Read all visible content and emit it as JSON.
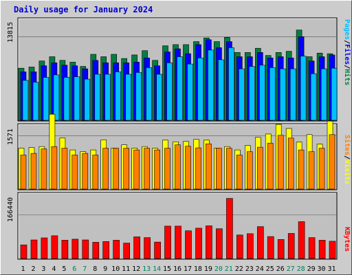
{
  "chart_data": {
    "type": "bar",
    "title": "Daily usage for January 2024",
    "x": [
      "1",
      "2",
      "3",
      "4",
      "5",
      "6",
      "7",
      "8",
      "9",
      "10",
      "11",
      "12",
      "13",
      "14",
      "15",
      "16",
      "17",
      "18",
      "19",
      "20",
      "21",
      "22",
      "23",
      "24",
      "25",
      "26",
      "27",
      "28",
      "29",
      "30",
      "31"
    ],
    "weekend_days": [
      "6",
      "7",
      "13",
      "14",
      "20",
      "21",
      "27",
      "28"
    ],
    "panels": [
      {
        "tick_label": "13815",
        "tick_value": 13815,
        "ymax": 16800,
        "legend_separator": "/",
        "series": [
          {
            "name": "Hits",
            "color": "#008040",
            "values": [
              8600,
              8800,
              9800,
              10500,
              9900,
              9600,
              8900,
              10900,
              10500,
              10900,
              10200,
              10800,
              11500,
              9900,
              12300,
              12500,
              12500,
              13000,
              13600,
              13000,
              13700,
              11200,
              11200,
              11900,
              10700,
              11200,
              11400,
              14900,
              10500,
              11100,
              11000
            ]
          },
          {
            "name": "Files",
            "color": "#0000ff",
            "values": [
              8000,
              8000,
              9000,
              9500,
              9100,
              9000,
              8500,
              9900,
              9500,
              9500,
              9500,
              9600,
              10300,
              9000,
              11300,
              11800,
              11000,
              12500,
              13300,
              12000,
              13000,
              10500,
              10500,
              11200,
              10300,
              10500,
              10300,
              13800,
              9800,
              10500,
              10800
            ]
          },
          {
            "name": "Pages",
            "color": "#00c0ff",
            "values": [
              6600,
              6300,
              7100,
              7500,
              7100,
              7200,
              6800,
              7600,
              7600,
              8000,
              7600,
              7900,
              8700,
              7600,
              9500,
              10500,
              9300,
              10300,
              11600,
              10000,
              12000,
              8500,
              8900,
              9100,
              8700,
              8500,
              8500,
              10600,
              7700,
              8500,
              8600
            ]
          }
        ]
      },
      {
        "tick_label": "1571",
        "tick_value": 1571,
        "ymax": 1900,
        "legend_separator": "/",
        "series": [
          {
            "name": "Visits",
            "color": "#ffff00",
            "values": [
              1200,
              1220,
              1250,
              2200,
              1500,
              1150,
              1100,
              1150,
              1450,
              1200,
              1300,
              1200,
              1250,
              1200,
              1440,
              1390,
              1400,
              1460,
              1440,
              1200,
              1250,
              1150,
              1280,
              1520,
              1620,
              1900,
              1780,
              1380,
              1600,
              1320,
              2000
            ]
          },
          {
            "name": "Sites",
            "color": "#ff8000",
            "values": [
              1000,
              1050,
              1180,
              1250,
              1200,
              1000,
              1050,
              1000,
              1200,
              1200,
              1200,
              1150,
              1200,
              1150,
              1200,
              1300,
              1260,
              1210,
              1330,
              1200,
              1200,
              1000,
              1100,
              1230,
              1350,
              1580,
              1500,
              1150,
              1100,
              1200,
              1600
            ]
          }
        ]
      },
      {
        "tick_label": "166440",
        "tick_value": 166440,
        "ymax": 250000,
        "legend_separator": "",
        "series": [
          {
            "name": "KBytes",
            "color": "#ff0000",
            "values": [
              52000,
              71000,
              79000,
              87000,
              70000,
              74000,
              71000,
              62000,
              65000,
              70000,
              59000,
              83000,
              80000,
              63000,
              124000,
              124000,
              106000,
              116000,
              125000,
              114000,
              230000,
              90000,
              95000,
              122000,
              84000,
              73000,
              96000,
              141000,
              80000,
              70000,
              66000
            ]
          }
        ]
      }
    ]
  }
}
